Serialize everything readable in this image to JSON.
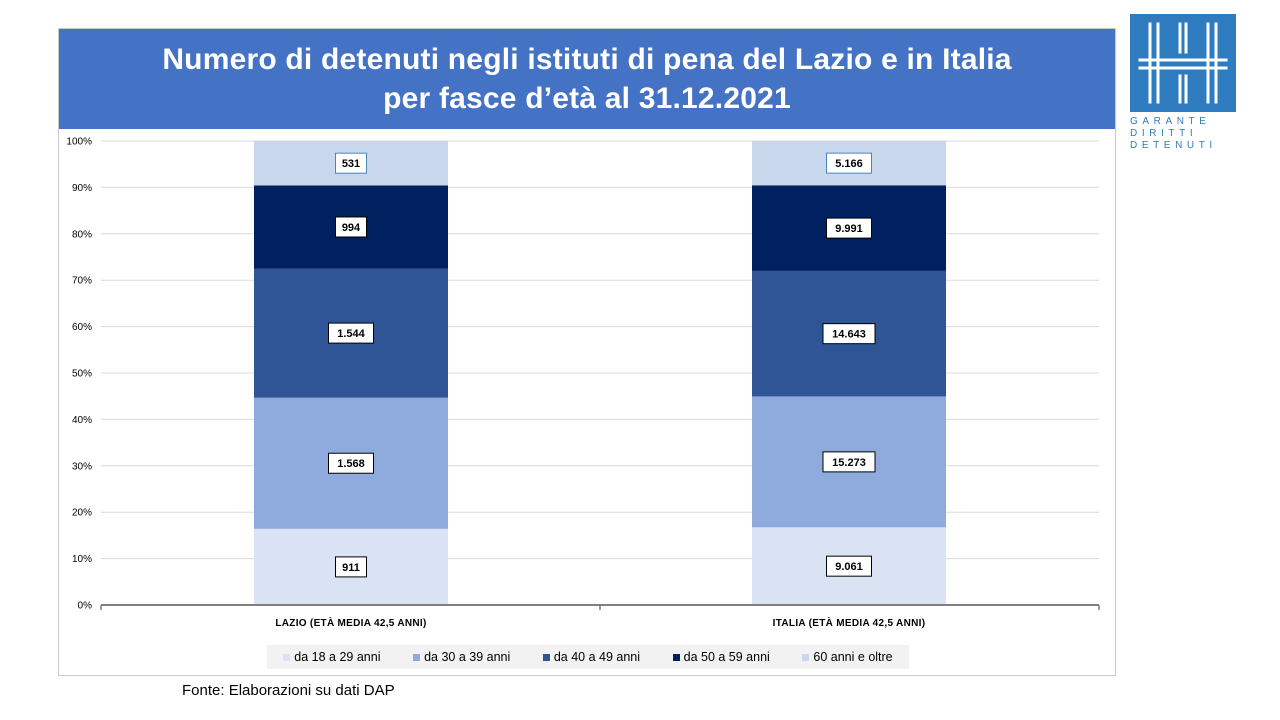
{
  "title": {
    "line1": "Numero di detenuti negli istituti di pena del Lazio e in Italia",
    "line2": "per fasce d’età al 31.12.2021"
  },
  "source": "Fonte: Elaborazioni su dati DAP",
  "logo": {
    "line1": "GARANTE",
    "line2": "DIRITTI",
    "line3": "DETENUTI",
    "color": "#2e7bbf"
  },
  "colors": {
    "banner": "#4472c4",
    "series": [
      "#dae3f3",
      "#8faadc",
      "#2f5597",
      "#002060",
      "#c9d7ec"
    ],
    "grid": "#d9d9d9",
    "axis": "#808080"
  },
  "chart_data": {
    "type": "bar",
    "stacked": "percent",
    "title": "Numero di detenuti negli istituti di pena del Lazio e in Italia per fasce d’età al 31.12.2021",
    "categories": [
      "LAZIO (ETÀ MEDIA 42,5 ANNI)",
      "ITALIA (ETÀ MEDIA 42,5 ANNI)"
    ],
    "y_ticks": [
      "0%",
      "10%",
      "20%",
      "30%",
      "40%",
      "50%",
      "60%",
      "70%",
      "80%",
      "90%",
      "100%"
    ],
    "ylim": [
      0,
      100
    ],
    "grid": true,
    "legend_position": "bottom",
    "series": [
      {
        "name": "da 18 a 29 anni",
        "values": [
          911,
          9061
        ],
        "labels": [
          "911",
          "9.061"
        ]
      },
      {
        "name": "da 30 a 39 anni",
        "values": [
          1568,
          15273
        ],
        "labels": [
          "1.568",
          "15.273"
        ]
      },
      {
        "name": "da 40 a 49 anni",
        "values": [
          1544,
          14643
        ],
        "labels": [
          "1.544",
          "14.643"
        ]
      },
      {
        "name": "da 50 a 59 anni",
        "values": [
          994,
          9991
        ],
        "labels": [
          "994",
          "9.991"
        ]
      },
      {
        "name": "60 anni e oltre",
        "values": [
          531,
          5166
        ],
        "labels": [
          "531",
          "5.166"
        ]
      }
    ]
  }
}
